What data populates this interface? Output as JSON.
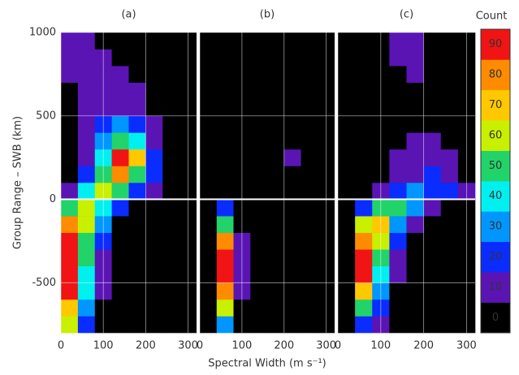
{
  "chart_data": [
    {
      "type": "heatmap",
      "title": "(a)",
      "ylabel": "Group Range – SWB (km)",
      "xbins": [
        0,
        40,
        80,
        120,
        160,
        200,
        240,
        280,
        320
      ],
      "ybins": [
        -800,
        -700,
        -600,
        -500,
        -400,
        -300,
        -200,
        -100,
        0,
        100,
        200,
        300,
        400,
        500,
        600,
        700,
        800,
        900,
        1000
      ],
      "xlim": [
        0,
        320
      ],
      "ylim": [
        -800,
        1000
      ],
      "xticks": [
        0,
        100,
        200,
        300
      ],
      "yticks": [
        -500,
        0,
        500,
        1000
      ],
      "grid": true,
      "z": [
        [
          60,
          25,
          5,
          0,
          0,
          0,
          0,
          0
        ],
        [
          75,
          35,
          8,
          2,
          0,
          0,
          0,
          0
        ],
        [
          90,
          40,
          10,
          2,
          0,
          0,
          0,
          0
        ],
        [
          95,
          45,
          12,
          3,
          0,
          0,
          0,
          0
        ],
        [
          95,
          50,
          15,
          3,
          0,
          0,
          0,
          0
        ],
        [
          90,
          55,
          20,
          5,
          0,
          0,
          0,
          0
        ],
        [
          80,
          60,
          30,
          8,
          2,
          0,
          0,
          0
        ],
        [
          55,
          65,
          45,
          20,
          8,
          3,
          0,
          0
        ],
        [
          12,
          45,
          65,
          50,
          25,
          10,
          3,
          0
        ],
        [
          5,
          25,
          55,
          85,
          55,
          20,
          5,
          0
        ],
        [
          3,
          15,
          40,
          90,
          70,
          25,
          5,
          0
        ],
        [
          2,
          12,
          30,
          55,
          40,
          18,
          4,
          0
        ],
        [
          3,
          12,
          22,
          30,
          22,
          12,
          3,
          0
        ],
        [
          5,
          12,
          15,
          18,
          14,
          8,
          2,
          0
        ],
        [
          8,
          15,
          14,
          12,
          10,
          5,
          0,
          0
        ],
        [
          12,
          15,
          12,
          10,
          6,
          2,
          0,
          0
        ],
        [
          10,
          14,
          10,
          6,
          3,
          0,
          0,
          0
        ],
        [
          12,
          14,
          6,
          2,
          0,
          0,
          0,
          0
        ]
      ]
    },
    {
      "type": "heatmap",
      "title": "(b)",
      "xlabel": "Spectral Width (m s⁻¹)",
      "xbins": [
        0,
        40,
        80,
        120,
        160,
        200,
        240,
        280,
        320
      ],
      "ybins": [
        -800,
        -700,
        -600,
        -500,
        -400,
        -300,
        -200,
        -100,
        0,
        100,
        200,
        300,
        400,
        500,
        600,
        700,
        800,
        900,
        1000
      ],
      "xlim": [
        0,
        320
      ],
      "ylim": [
        -800,
        1000
      ],
      "xticks": [
        0,
        100,
        200,
        300
      ],
      "yticks": [
        -500,
        0,
        500,
        1000
      ],
      "grid": true,
      "z": [
        [
          0,
          35,
          5,
          0,
          0,
          0,
          0,
          0
        ],
        [
          2,
          60,
          8,
          0,
          0,
          0,
          0,
          0
        ],
        [
          3,
          85,
          12,
          0,
          0,
          0,
          0,
          0
        ],
        [
          3,
          95,
          15,
          0,
          0,
          0,
          0,
          0
        ],
        [
          2,
          92,
          15,
          0,
          0,
          0,
          0,
          0
        ],
        [
          2,
          80,
          12,
          0,
          0,
          0,
          0,
          0
        ],
        [
          0,
          55,
          8,
          0,
          0,
          0,
          0,
          0
        ],
        [
          0,
          25,
          5,
          2,
          0,
          0,
          0,
          0
        ],
        [
          0,
          0,
          0,
          0,
          0,
          0,
          0,
          0
        ],
        [
          0,
          0,
          0,
          0,
          0,
          0,
          0,
          0
        ],
        [
          0,
          0,
          0,
          0,
          0,
          11,
          0,
          0
        ],
        [
          0,
          0,
          0,
          0,
          0,
          0,
          0,
          0
        ],
        [
          0,
          0,
          0,
          0,
          0,
          0,
          0,
          0
        ],
        [
          0,
          0,
          0,
          0,
          0,
          0,
          0,
          0
        ],
        [
          0,
          0,
          0,
          0,
          0,
          0,
          0,
          0
        ],
        [
          0,
          0,
          0,
          0,
          0,
          0,
          0,
          0
        ],
        [
          0,
          0,
          0,
          0,
          0,
          0,
          0,
          0
        ],
        [
          0,
          0,
          0,
          0,
          0,
          0,
          0,
          0
        ]
      ]
    },
    {
      "type": "heatmap",
      "title": "(c)",
      "xbins": [
        0,
        40,
        80,
        120,
        160,
        200,
        240,
        280,
        320
      ],
      "ybins": [
        -800,
        -700,
        -600,
        -500,
        -400,
        -300,
        -200,
        -100,
        0,
        100,
        200,
        300,
        400,
        500,
        600,
        700,
        800,
        900,
        1000
      ],
      "xlim": [
        0,
        320
      ],
      "ylim": [
        -800,
        1000
      ],
      "xticks": [
        0,
        100,
        200,
        300
      ],
      "yticks": [
        -500,
        0,
        500,
        1000
      ],
      "grid": true,
      "z": [
        [
          0,
          25,
          10,
          0,
          0,
          0,
          0,
          0
        ],
        [
          2,
          50,
          20,
          5,
          0,
          0,
          0,
          0
        ],
        [
          5,
          75,
          30,
          8,
          0,
          0,
          0,
          0
        ],
        [
          8,
          90,
          40,
          10,
          2,
          0,
          0,
          0
        ],
        [
          8,
          92,
          50,
          15,
          3,
          0,
          0,
          0
        ],
        [
          5,
          85,
          60,
          20,
          5,
          0,
          0,
          0
        ],
        [
          2,
          60,
          70,
          35,
          10,
          3,
          0,
          0
        ],
        [
          0,
          25,
          50,
          55,
          30,
          15,
          5,
          0
        ],
        [
          0,
          5,
          15,
          25,
          30,
          28,
          20,
          10
        ],
        [
          0,
          0,
          5,
          12,
          18,
          20,
          15,
          8
        ],
        [
          0,
          0,
          3,
          10,
          15,
          15,
          12,
          5
        ],
        [
          0,
          0,
          2,
          5,
          10,
          12,
          8,
          3
        ],
        [
          0,
          0,
          0,
          2,
          5,
          5,
          2,
          0
        ],
        [
          0,
          0,
          0,
          0,
          2,
          0,
          0,
          0
        ],
        [
          0,
          0,
          0,
          0,
          0,
          0,
          0,
          0
        ],
        [
          0,
          0,
          0,
          8,
          12,
          0,
          0,
          0
        ],
        [
          0,
          0,
          0,
          12,
          15,
          3,
          0,
          0
        ],
        [
          0,
          0,
          0,
          15,
          12,
          0,
          0,
          0
        ]
      ]
    }
  ],
  "colorbar": {
    "title": "Count",
    "ticks": [
      0,
      10,
      20,
      30,
      40,
      50,
      60,
      70,
      80,
      90
    ],
    "colors": [
      "#000000",
      "#5a14b4",
      "#0a2cff",
      "#0096ff",
      "#00f0f0",
      "#22d36a",
      "#c8f000",
      "#ffc800",
      "#ff8c00",
      "#f01414"
    ]
  }
}
